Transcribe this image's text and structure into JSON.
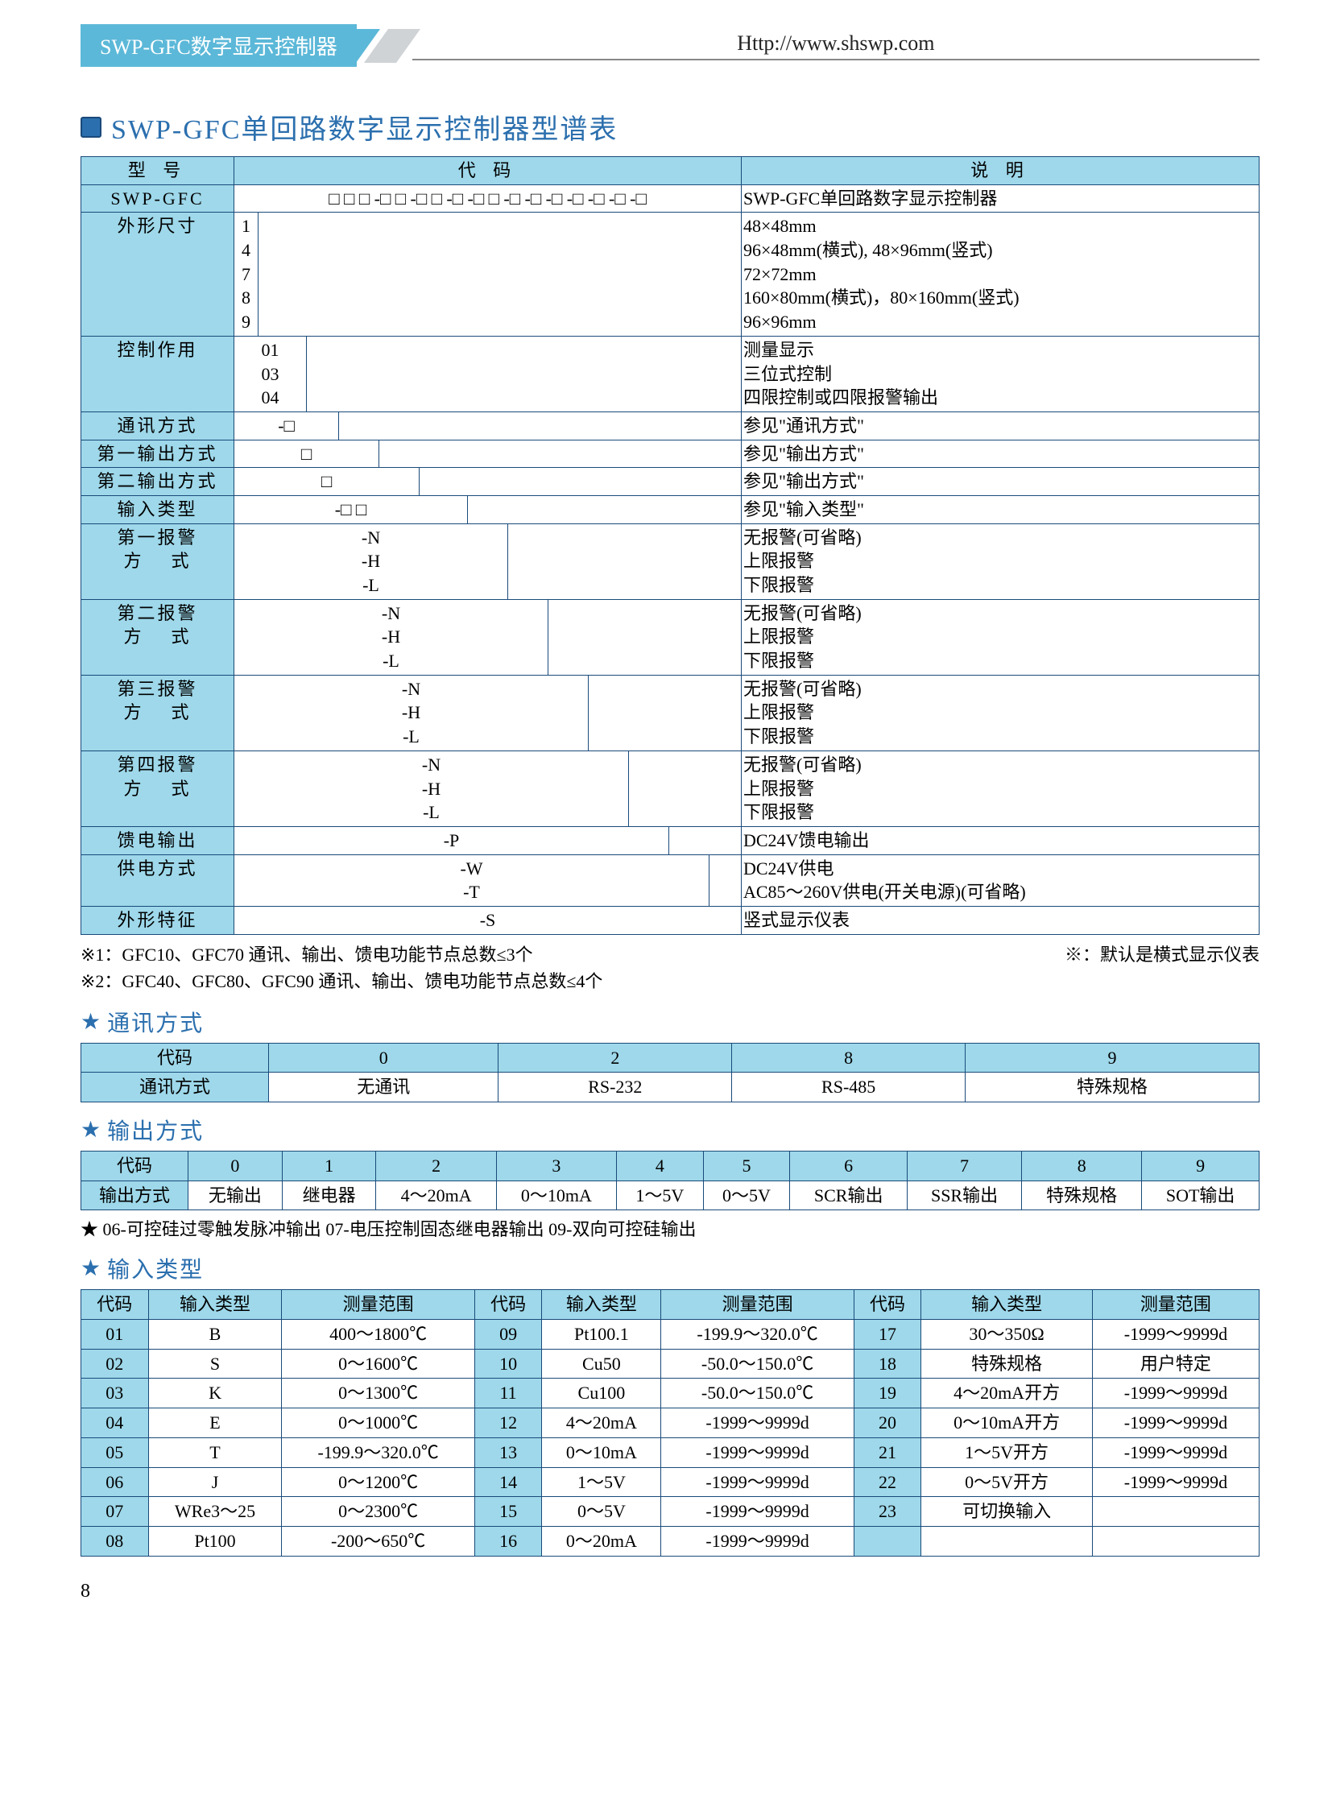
{
  "header": {
    "left": "SWP-GFC数字显示控制器",
    "url": "Http://www.shswp.com"
  },
  "colors": {
    "accent": "#5cb8d8",
    "header_bg": "#9ed8ea",
    "border": "#1a4a7a",
    "title": "#2b6fae"
  },
  "main_title": "SWP-GFC单回路数字显示控制器型谱表",
  "main_table": {
    "head": {
      "model": "型    号",
      "code": "代        码",
      "desc": "说        明"
    },
    "swp_row": {
      "label": "SWP-GFC",
      "code": "□ □ □ -□  □  -□ □ -□  -□ □  -□  -□  -□  -□  -□  -□  -□",
      "desc": "SWP-GFC单回路数字显示控制器"
    },
    "size": {
      "label": "外形尺寸",
      "codes": "1\n4\n7\n8\n9",
      "desc": "48×48mm\n96×48mm(横式), 48×96mm(竖式)\n72×72mm\n160×80mm(横式)，80×160mm(竖式)\n96×96mm"
    },
    "control": {
      "label": "控制作用",
      "codes": "01\n03\n04",
      "desc": "测量显示\n三位式控制\n四限控制或四限报警输出"
    },
    "comm": {
      "label": "通讯方式",
      "code": "-□",
      "desc": "参见\"通讯方式\""
    },
    "out1": {
      "label": "第一输出方式",
      "code": "□",
      "desc": "参见\"输出方式\""
    },
    "out2": {
      "label": "第二输出方式",
      "code": "□",
      "desc": "参见\"输出方式\""
    },
    "intype": {
      "label": "输入类型",
      "code": "-□ □",
      "desc": "参见\"输入类型\""
    },
    "alarm1": {
      "label": "第一报警\n方    式",
      "codes": "-N\n-H\n-L",
      "desc": "无报警(可省略)\n上限报警\n下限报警"
    },
    "alarm2": {
      "label": "第二报警\n方    式",
      "codes": "-N\n-H\n-L",
      "desc": "无报警(可省略)\n上限报警\n下限报警"
    },
    "alarm3": {
      "label": "第三报警\n方    式",
      "codes": "-N\n-H\n-L",
      "desc": "无报警(可省略)\n上限报警\n下限报警"
    },
    "alarm4": {
      "label": "第四报警\n方    式",
      "codes": "-N\n-H\n-L",
      "desc": "无报警(可省略)\n上限报警\n下限报警"
    },
    "feed": {
      "label": "馈电输出",
      "code": "-P",
      "desc": "DC24V馈电输出"
    },
    "power": {
      "label": "供电方式",
      "codes": "-W\n-T",
      "desc": "DC24V供电\nAC85～260V供电(开关电源)(可省略)"
    },
    "shape": {
      "label": "外形特征",
      "code": "-S",
      "desc": "竖式显示仪表"
    }
  },
  "notes": {
    "n1": "※1：GFC10、GFC70 通讯、输出、馈电功能节点总数≤3个",
    "n1r": "※：默认是横式显示仪表",
    "n2": "※2：GFC40、GFC80、GFC90 通讯、输出、馈电功能节点总数≤4个"
  },
  "comm_table": {
    "title": "通讯方式",
    "head": {
      "code": "代码",
      "label": "通讯方式"
    },
    "cols": [
      {
        "code": "0",
        "val": "无通讯"
      },
      {
        "code": "2",
        "val": "RS-232"
      },
      {
        "code": "8",
        "val": "RS-485"
      },
      {
        "code": "9",
        "val": "特殊规格"
      }
    ]
  },
  "output_table": {
    "title": "输出方式",
    "head": {
      "code": "代码",
      "label": "输出方式"
    },
    "cols": [
      {
        "code": "0",
        "val": "无输出"
      },
      {
        "code": "1",
        "val": "继电器"
      },
      {
        "code": "2",
        "val": "4～20mA"
      },
      {
        "code": "3",
        "val": "0～10mA"
      },
      {
        "code": "4",
        "val": "1～5V"
      },
      {
        "code": "5",
        "val": "0～5V"
      },
      {
        "code": "6",
        "val": "SCR输出"
      },
      {
        "code": "7",
        "val": "SSR输出"
      },
      {
        "code": "8",
        "val": "特殊规格"
      },
      {
        "code": "9",
        "val": "SOT输出"
      }
    ],
    "note": "★ 06-可控硅过零触发脉冲输出    07-电压控制固态继电器输出    09-双向可控硅输出"
  },
  "input_table": {
    "title": "输入类型",
    "head": {
      "code": "代码",
      "type": "输入类型",
      "range": "测量范围"
    },
    "rows": [
      {
        "c": "01",
        "t": "B",
        "r": "400～1800℃",
        "c2": "09",
        "t2": "Pt100.1",
        "r2": "-199.9～320.0℃",
        "c3": "17",
        "t3": "30～350Ω",
        "r3": "-1999～9999d"
      },
      {
        "c": "02",
        "t": "S",
        "r": "0～1600℃",
        "c2": "10",
        "t2": "Cu50",
        "r2": "-50.0～150.0℃",
        "c3": "18",
        "t3": "特殊规格",
        "r3": "用户特定"
      },
      {
        "c": "03",
        "t": "K",
        "r": "0～1300℃",
        "c2": "11",
        "t2": "Cu100",
        "r2": "-50.0～150.0℃",
        "c3": "19",
        "t3": "4～20mA开方",
        "r3": "-1999～9999d"
      },
      {
        "c": "04",
        "t": "E",
        "r": "0～1000℃",
        "c2": "12",
        "t2": "4～20mA",
        "r2": "-1999～9999d",
        "c3": "20",
        "t3": "0～10mA开方",
        "r3": "-1999～9999d"
      },
      {
        "c": "05",
        "t": "T",
        "r": "-199.9～320.0℃",
        "c2": "13",
        "t2": "0～10mA",
        "r2": "-1999～9999d",
        "c3": "21",
        "t3": "1～5V开方",
        "r3": "-1999～9999d"
      },
      {
        "c": "06",
        "t": "J",
        "r": "0～1200℃",
        "c2": "14",
        "t2": "1～5V",
        "r2": "-1999～9999d",
        "c3": "22",
        "t3": "0～5V开方",
        "r3": "-1999～9999d"
      },
      {
        "c": "07",
        "t": "WRe3～25",
        "r": "0～2300℃",
        "c2": "15",
        "t2": "0～5V",
        "r2": "-1999～9999d",
        "c3": "23",
        "t3": "可切换输入",
        "r3": ""
      },
      {
        "c": "08",
        "t": "Pt100",
        "r": "-200～650℃",
        "c2": "16",
        "t2": "0～20mA",
        "r2": "-1999～9999d",
        "c3": "",
        "t3": "",
        "r3": ""
      }
    ]
  },
  "page_number": "8"
}
